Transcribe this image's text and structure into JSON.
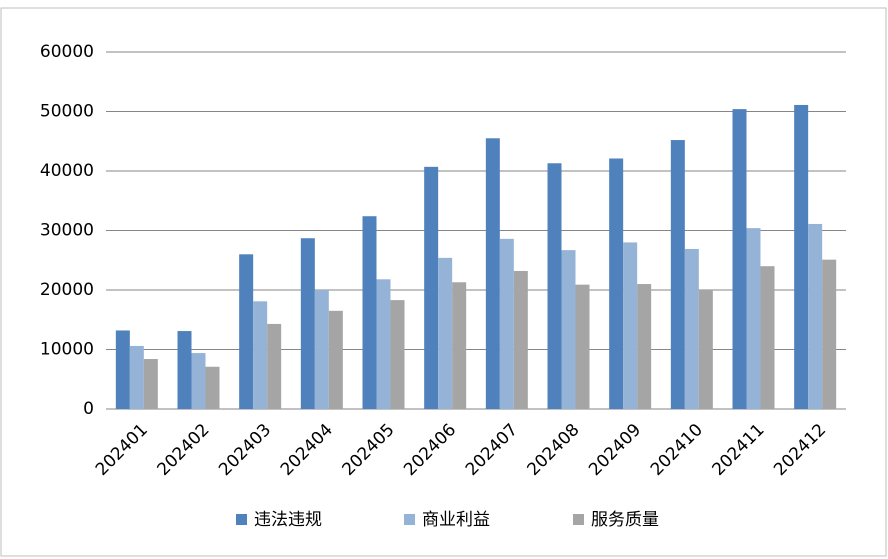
{
  "chart_data": {
    "type": "bar",
    "categories": [
      "202401",
      "202402",
      "202403",
      "202404",
      "202405",
      "202406",
      "202407",
      "202408",
      "202409",
      "202410",
      "202411",
      "202412"
    ],
    "series": [
      {
        "name": "违法违规",
        "color": "#4f81bd",
        "values": [
          13200,
          13100,
          26000,
          28700,
          32400,
          40700,
          45500,
          41300,
          42100,
          45200,
          50400,
          51100
        ]
      },
      {
        "name": "商业利益",
        "color": "#95b3d7",
        "values": [
          10600,
          9400,
          18100,
          20000,
          21800,
          25400,
          28600,
          26700,
          28000,
          26900,
          30400,
          31100
        ]
      },
      {
        "name": "服务质量",
        "color": "#a5a5a5",
        "values": [
          8400,
          7100,
          14300,
          16500,
          18300,
          21300,
          23200,
          20900,
          21000,
          20000,
          24000,
          25100
        ]
      }
    ],
    "ylim": [
      0,
      60000
    ],
    "yticks": [
      0,
      10000,
      20000,
      30000,
      40000,
      50000,
      60000
    ],
    "grid": true,
    "legend": "bottom"
  }
}
